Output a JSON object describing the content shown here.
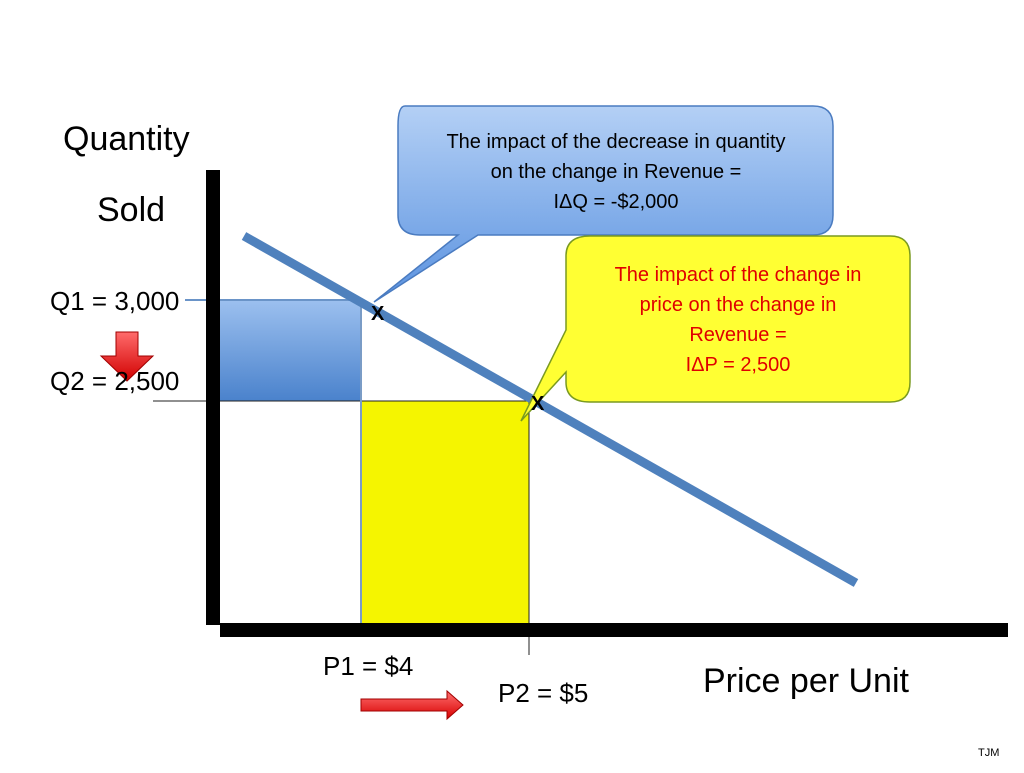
{
  "labels": {
    "y_axis_line1": "Quantity",
    "y_axis_line2": "Sold",
    "x_axis": "Price per Unit",
    "q1": "Q1 = 3,000",
    "q2": "Q2 = 2,500",
    "p1": "P1 = $4",
    "p2": "P2 = $5",
    "point_marker_1": "X",
    "point_marker_2": "X",
    "footer": "TJM"
  },
  "callouts": {
    "quantity_effect": {
      "lines": [
        "The impact of the decrease in quantity",
        "on the change in Revenue =",
        "IΔQ = -$2,000"
      ]
    },
    "price_effect": {
      "lines": [
        "The impact of the change in",
        "price on the change in",
        "Revenue =",
        "IΔP = 2,500"
      ]
    }
  },
  "colors": {
    "demand_line": "#4f81bd",
    "quantity_region": "#5b8fd6",
    "price_region": "#f5f500",
    "callout_blue": "#6aa0e8",
    "callout_yellow": "#ffff33",
    "arrow_red": "#ee0000",
    "axis": "#000000"
  },
  "icons": {
    "down_arrow": "red-down-arrow-icon",
    "right_arrow": "red-right-arrow-icon"
  }
}
